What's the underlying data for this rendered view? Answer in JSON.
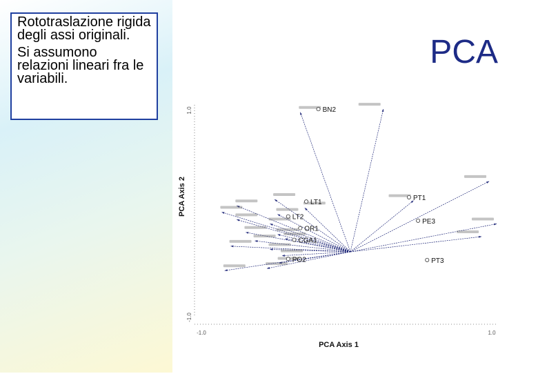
{
  "textbox": {
    "line1": "Rototraslazione rigida degli assi originali.",
    "line2": "Si assumono relazioni lineari fra le variabili."
  },
  "title": "PCA",
  "chart_data": {
    "type": "scatter",
    "xlabel": "PCA Axis 1",
    "ylabel": "PCA Axis 2",
    "xlim": [
      -1.0,
      1.0
    ],
    "ylim": [
      -1.0,
      1.0
    ],
    "x_ticks": [
      "-1.0",
      "1.0"
    ],
    "y_ticks": [
      "-1.0",
      "1.0"
    ],
    "grid": false,
    "groups": [
      {
        "name": "BN2",
        "x": -0.18,
        "y": 0.96
      },
      {
        "name": "LT1",
        "x": -0.26,
        "y": 0.09
      },
      {
        "name": "LT2",
        "x": -0.38,
        "y": -0.05
      },
      {
        "name": "OR1",
        "x": -0.3,
        "y": -0.16
      },
      {
        "name": "CGA1",
        "x": -0.34,
        "y": -0.27
      },
      {
        "name": "PO2",
        "x": -0.38,
        "y": -0.45
      },
      {
        "name": "PT1",
        "x": 0.42,
        "y": 0.13
      },
      {
        "name": "PE3",
        "x": 0.48,
        "y": -0.09
      },
      {
        "name": "PT3",
        "x": 0.54,
        "y": -0.46
      }
    ],
    "vectors": [
      {
        "x": -0.3,
        "y": 0.93
      },
      {
        "x": 0.25,
        "y": 0.96
      },
      {
        "x": 0.95,
        "y": 0.28
      },
      {
        "x": 0.45,
        "y": 0.1
      },
      {
        "x": 1.0,
        "y": -0.12
      },
      {
        "x": 0.9,
        "y": -0.24
      },
      {
        "x": -0.47,
        "y": 0.11
      },
      {
        "x": -0.72,
        "y": 0.05
      },
      {
        "x": -0.82,
        "y": -0.01
      },
      {
        "x": -0.72,
        "y": -0.08
      },
      {
        "x": -0.45,
        "y": -0.03
      },
      {
        "x": -0.27,
        "y": 0.03
      },
      {
        "x": -0.5,
        "y": -0.12
      },
      {
        "x": -0.45,
        "y": -0.22
      },
      {
        "x": -0.66,
        "y": -0.2
      },
      {
        "x": -0.4,
        "y": -0.26
      },
      {
        "x": -0.6,
        "y": -0.28
      },
      {
        "x": -0.76,
        "y": -0.33
      },
      {
        "x": -0.5,
        "y": -0.36
      },
      {
        "x": -0.42,
        "y": -0.42
      },
      {
        "x": -0.44,
        "y": -0.49
      },
      {
        "x": -0.52,
        "y": -0.54
      },
      {
        "x": -0.8,
        "y": -0.56
      }
    ]
  }
}
